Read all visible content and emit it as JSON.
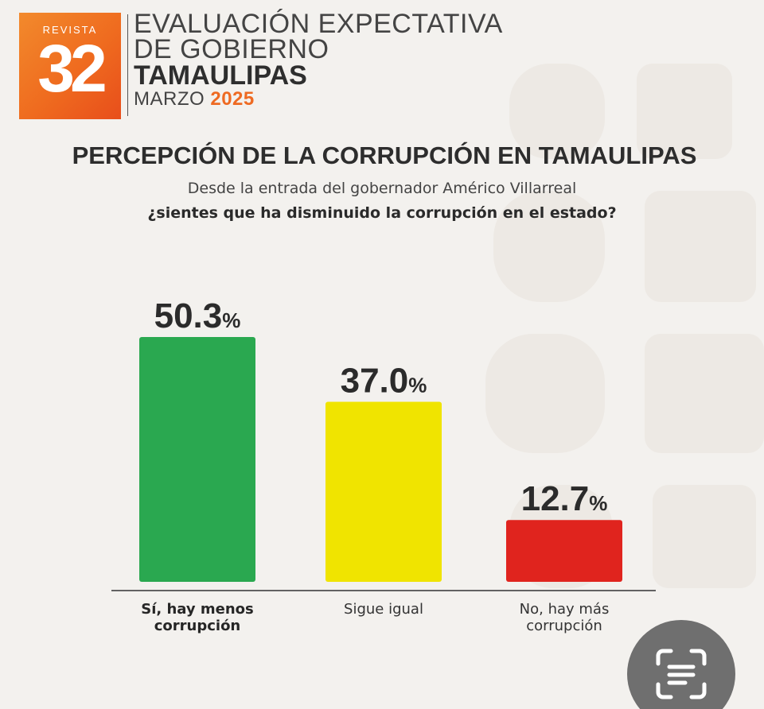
{
  "header": {
    "logo_word": "REVISTA",
    "logo_number": "32",
    "line1": "EVALUACIÓN EXPECTATIVA",
    "line2": "DE GOBIERNO",
    "line3": "TAMAULIPAS",
    "month": "MARZO",
    "year": "2025"
  },
  "colors": {
    "brand_orange": "#ee6a22",
    "bar_yes": "#2aa850",
    "bar_same": "#f0e400",
    "bar_no": "#e0241e"
  },
  "chart_data": {
    "type": "bar",
    "title": "PERCEPCIÓN DE LA CORRUPCIÓN EN TAMAULIPAS",
    "subtitle": "Desde la entrada del gobernador Américo Villarreal",
    "question": "¿sientes que ha disminuido la corrupción en el estado?",
    "categories": [
      "Sí, hay menos corrupción",
      "Sigue igual",
      "No, hay más corrupción"
    ],
    "category_lines": [
      [
        "Sí, hay menos",
        "corrupción"
      ],
      [
        "Sigue igual"
      ],
      [
        "No, hay más",
        "corrupción"
      ]
    ],
    "values": [
      50.3,
      37.0,
      12.7
    ],
    "value_labels": [
      "50.3",
      "37.0",
      "12.7"
    ],
    "unit": "%",
    "ylim": [
      0,
      50.3
    ],
    "grid": false,
    "legend": "none"
  },
  "scan_button_icon": "text-scan-icon"
}
